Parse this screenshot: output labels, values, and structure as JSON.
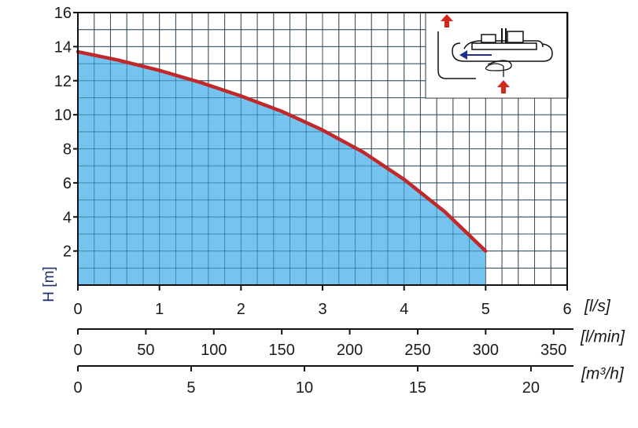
{
  "chart_data": {
    "type": "area",
    "title": "",
    "ylabel": "H [m]",
    "ylim": [
      0,
      16
    ],
    "y_ticks": [
      2,
      4,
      6,
      8,
      10,
      12,
      14,
      16
    ],
    "grid": true,
    "x_axes": [
      {
        "unit": "[l/s]",
        "range": [
          0,
          6
        ],
        "ticks": [
          0,
          1,
          2,
          3,
          4,
          5,
          6
        ]
      },
      {
        "unit": "[l/min]",
        "range": [
          0,
          360
        ],
        "ticks": [
          0,
          50,
          100,
          150,
          200,
          250,
          300,
          350
        ]
      },
      {
        "unit": "[m³/h]",
        "range": [
          0,
          21.6
        ],
        "ticks": [
          0,
          5,
          10,
          15,
          20
        ]
      }
    ],
    "series": [
      {
        "x": [
          0,
          0.5,
          1,
          1.5,
          2,
          2.5,
          3,
          3.5,
          4,
          4.5,
          5
        ],
        "y": [
          13.7,
          13.2,
          12.6,
          11.9,
          11.1,
          10.2,
          9.1,
          7.8,
          6.2,
          4.3,
          2.0
        ]
      }
    ],
    "colors": {
      "curve": "#c0282a",
      "fill": "#74c4ef",
      "grid": "#333333",
      "arrow": "#d8261c",
      "inset_arrow": "#1f2f8f"
    },
    "inset": {
      "icon": "pump-flow-diagram-icon"
    }
  }
}
